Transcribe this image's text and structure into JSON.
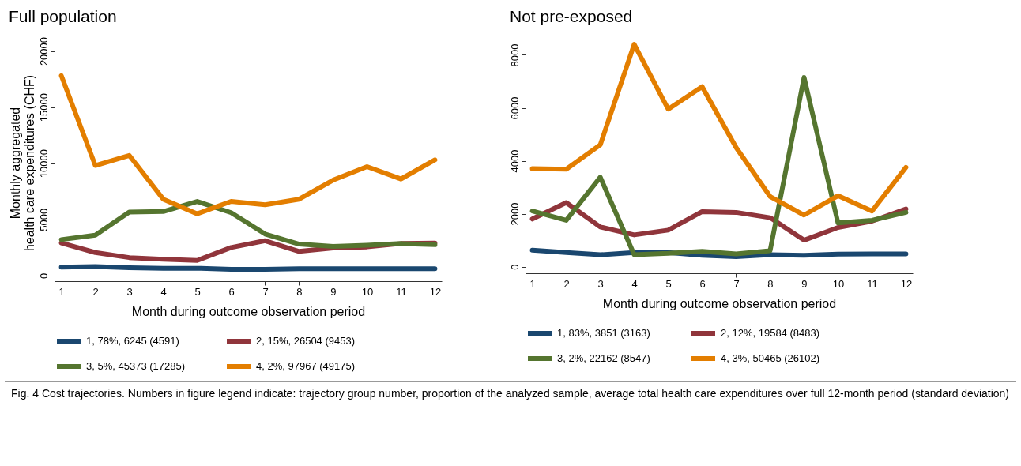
{
  "chart_data": [
    {
      "type": "line",
      "title": "Full population",
      "xlabel": "Month during outcome observation period",
      "ylabel": "Monthly aggregated\nhealth care expenditures (CHF)",
      "x": [
        1,
        2,
        3,
        4,
        5,
        6,
        7,
        8,
        9,
        10,
        11,
        12
      ],
      "xlim": [
        0.8,
        12.2
      ],
      "xticks": [
        1,
        2,
        3,
        4,
        5,
        6,
        7,
        8,
        9,
        10,
        11,
        12
      ],
      "ylim": [
        -500,
        20600
      ],
      "yticks": [
        0,
        5000,
        10000,
        15000,
        20000
      ],
      "legend": "bottom",
      "series": [
        {
          "name": "1, 78%, 6245 (4591)",
          "color": "#1a476f",
          "values": [
            750,
            800,
            700,
            650,
            650,
            550,
            550,
            600,
            600,
            600,
            600,
            600
          ]
        },
        {
          "name": "2, 15%, 26504 (9453)",
          "color": "#90353b",
          "values": [
            2900,
            2050,
            1600,
            1450,
            1350,
            2500,
            3100,
            2150,
            2450,
            2550,
            2850,
            2900
          ]
        },
        {
          "name": "3, 5%, 45373 (17285)",
          "color": "#55752f",
          "values": [
            3200,
            3600,
            5650,
            5700,
            6600,
            5600,
            3700,
            2800,
            2600,
            2700,
            2850,
            2750
          ]
        },
        {
          "name": "4, 2%, 97967 (49175)",
          "color": "#e37e00",
          "values": [
            17800,
            9800,
            10700,
            6800,
            5500,
            6600,
            6300,
            6800,
            8500,
            9700,
            8600,
            10300
          ]
        }
      ],
      "annotations": [
        "Fig. 4 Cost trajectories. Numbers in figure legend indicate: trajectory group number, proportion of the analyzed sample, average total health care expenditures over full 12-month period (standard deviation)"
      ]
    },
    {
      "type": "line",
      "title": "Not pre-exposed",
      "xlabel": "Month during outcome observation period",
      "x": [
        1,
        2,
        3,
        4,
        5,
        6,
        7,
        8,
        9,
        10,
        11,
        12
      ],
      "xlim": [
        0.8,
        12.2
      ],
      "xticks": [
        1,
        2,
        3,
        4,
        5,
        6,
        7,
        8,
        9,
        10,
        11,
        12
      ],
      "ylim": [
        -250,
        8700
      ],
      "yticks": [
        0,
        2000,
        4000,
        6000,
        8000
      ],
      "legend": "bottom",
      "series": [
        {
          "name": "1, 83%, 3851 (3163)",
          "color": "#1a476f",
          "values": [
            620,
            530,
            450,
            530,
            530,
            430,
            380,
            450,
            430,
            470,
            480,
            480
          ]
        },
        {
          "name": "2, 12%, 19584 (8483)",
          "color": "#90353b",
          "values": [
            1800,
            2420,
            1500,
            1200,
            1380,
            2080,
            2050,
            1850,
            1000,
            1480,
            1720,
            2180
          ]
        },
        {
          "name": "3, 2%, 22162 (8547)",
          "color": "#55752f",
          "values": [
            2100,
            1750,
            3380,
            450,
            500,
            580,
            480,
            600,
            7150,
            1650,
            1750,
            2050
          ]
        },
        {
          "name": "4, 3%, 50465 (26102)",
          "color": "#e37e00",
          "values": [
            3700,
            3680,
            4600,
            8400,
            5950,
            6800,
            4500,
            2650,
            1950,
            2680,
            2100,
            3750
          ]
        }
      ]
    }
  ]
}
